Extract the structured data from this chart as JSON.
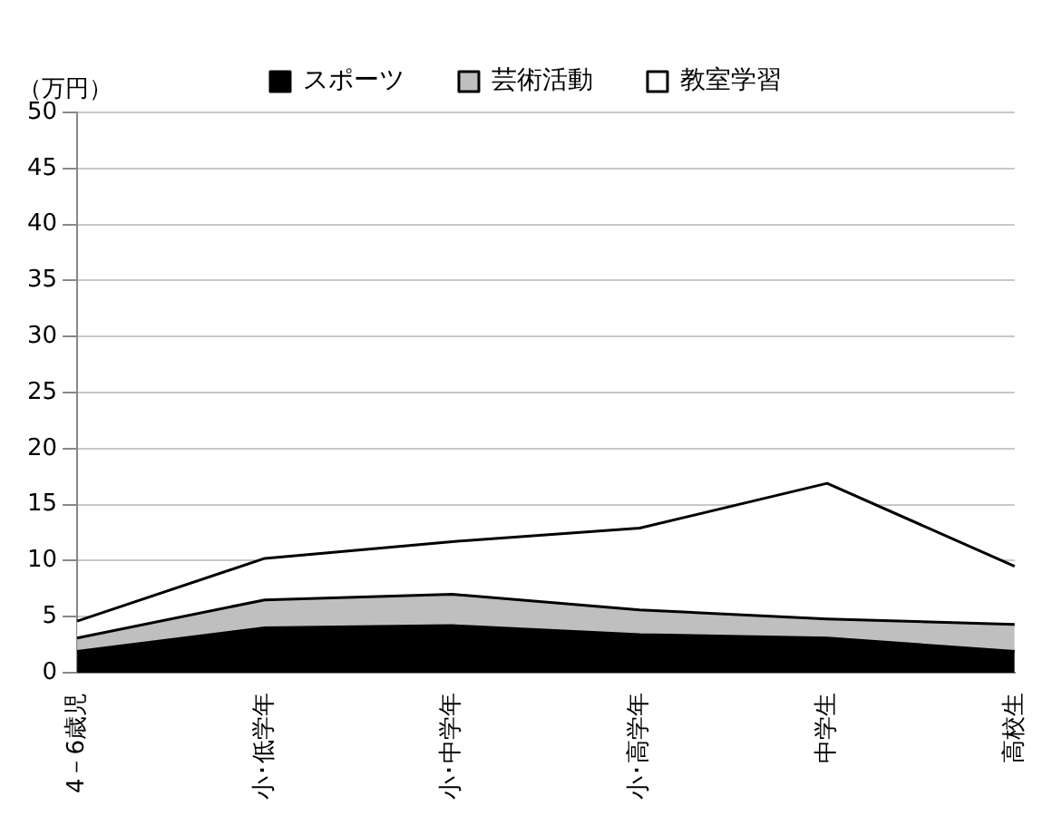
{
  "chart_data": {
    "type": "area",
    "stacked": true,
    "ylabel": "（万円）",
    "categories": [
      "4－6歳児",
      "小･低学年",
      "小･中学年",
      "小･高学年",
      "中学生",
      "高校生"
    ],
    "series": [
      {
        "name": "スポーツ",
        "color": "#000000",
        "values": [
          1.9,
          4.0,
          4.2,
          3.4,
          3.1,
          1.9
        ]
      },
      {
        "name": "芸術活動",
        "color": "#bfbfbf",
        "values": [
          1.2,
          2.5,
          2.8,
          2.2,
          1.7,
          2.4
        ]
      },
      {
        "name": "教室学習",
        "color": "#ffffff",
        "values": [
          1.5,
          3.7,
          4.7,
          7.3,
          12.1,
          5.2
        ]
      }
    ],
    "ylim": [
      0,
      50
    ],
    "yticks": [
      0,
      5,
      10,
      15,
      20,
      25,
      30,
      35,
      40,
      45,
      50
    ],
    "grid": "y",
    "legend": "top"
  }
}
